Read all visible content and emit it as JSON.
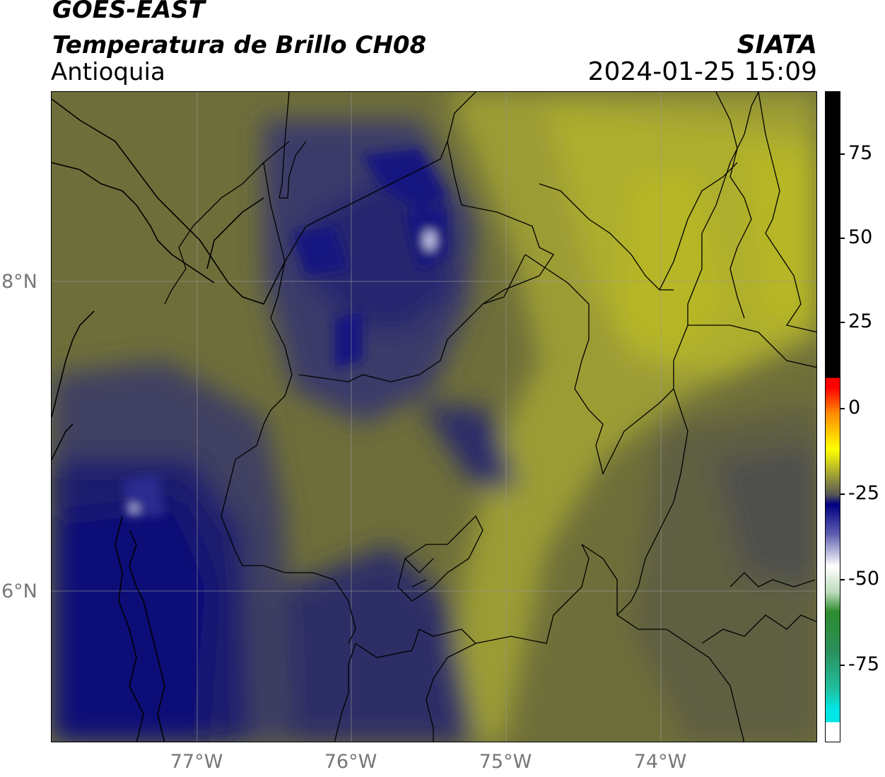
{
  "header": {
    "satellite": "GOES-EAST",
    "product": "Temperatura de Brillo CH08",
    "region": "Antioquia",
    "organization": "SIATA",
    "timestamp": "2024-01-25 15:09"
  },
  "map": {
    "extent": {
      "lon_min": -77.95,
      "lon_max": -73.0,
      "lat_min": 5.0,
      "lat_max": 9.2
    },
    "grid": true,
    "lat_labels": [
      "8°N",
      "6°N"
    ],
    "lon_labels": [
      "77°W",
      "76°W",
      "75°W",
      "74°W"
    ]
  },
  "colorbar": {
    "range": [
      -95,
      92
    ],
    "ticks": [
      "75",
      "50",
      "25",
      "0",
      "-25",
      "-50",
      "-75"
    ],
    "colors": {
      "hot": "#000000",
      "warm_red": "#ff0000",
      "yellow": "#ffff00",
      "olive": "#b8b82a",
      "gray": "#555555",
      "navy": "#000080",
      "white": "#ffffff",
      "green": "#2e8b2e",
      "cyan": "#00e5e5"
    }
  }
}
